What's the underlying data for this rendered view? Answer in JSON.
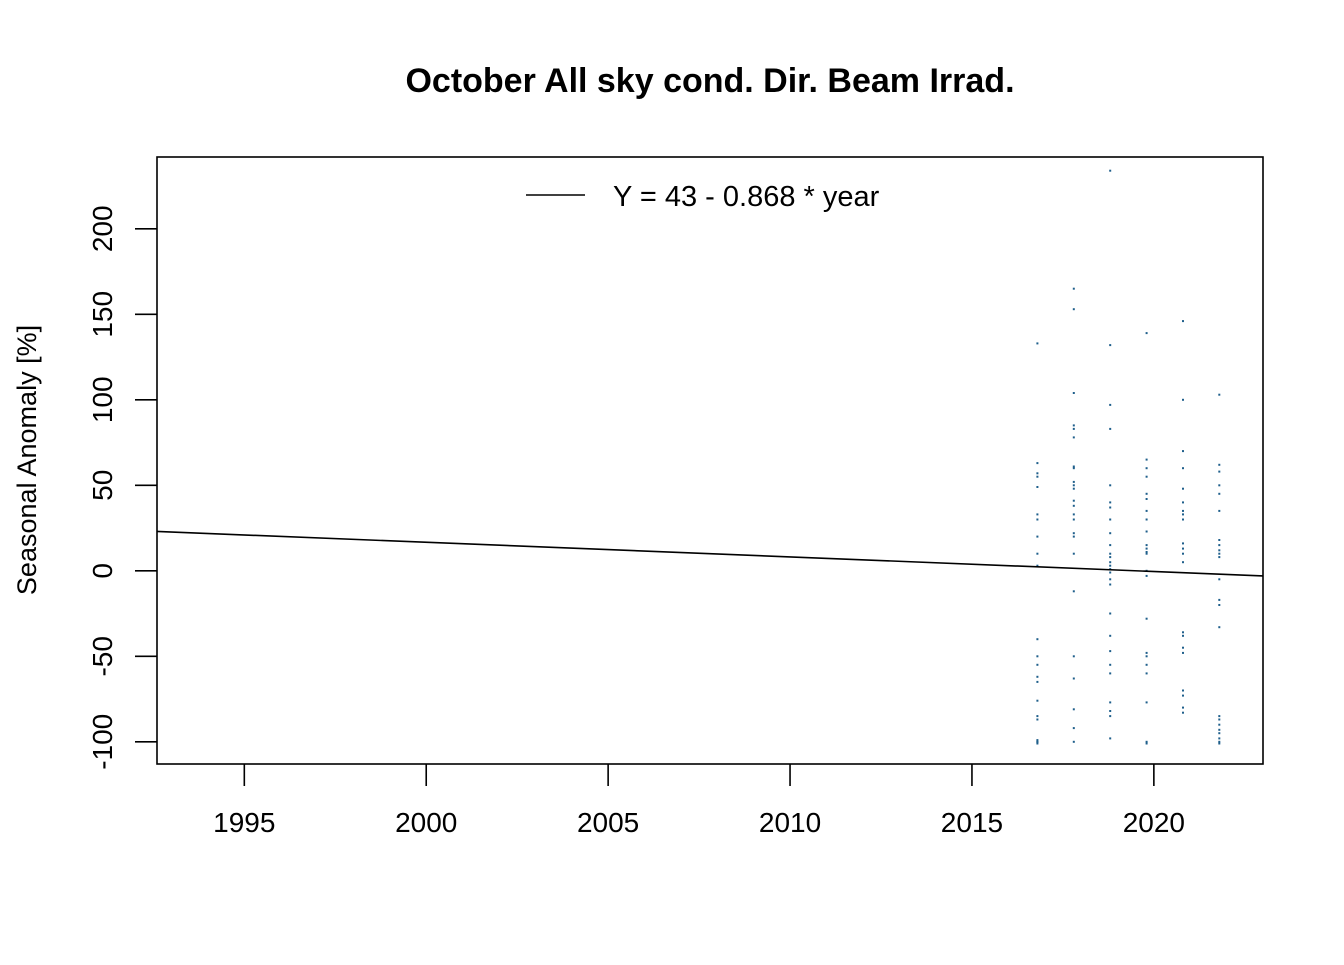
{
  "chart_data": {
    "type": "scatter",
    "title": "October All sky cond. Dir. Beam Irrad.",
    "xlabel": "",
    "ylabel": "Seasonal Anomaly [%]",
    "xlim": [
      1992.6,
      2023.0
    ],
    "ylim": [
      -113,
      242
    ],
    "xticks": [
      1995,
      2000,
      2005,
      2010,
      2015,
      2020
    ],
    "yticks": [
      -100,
      -50,
      0,
      50,
      100,
      150,
      200
    ],
    "grid": false,
    "legend": {
      "position": "top",
      "entries": [
        "Y = 43 - 0.868 * year"
      ]
    },
    "point_color": "#1f5f8b",
    "trend_line": {
      "label": "Y = 43 - 0.868 * year",
      "x": [
        1992.6,
        2023.0
      ],
      "y": [
        23.0,
        -3.0
      ],
      "color": "#000000"
    },
    "series": [
      {
        "x": [
          2016.8,
          2016.8,
          2016.8,
          2016.8,
          2016.8,
          2016.8,
          2016.8,
          2016.8,
          2016.8,
          2016.8,
          2016.8,
          2016.8,
          2016.8,
          2016.8,
          2016.8,
          2016.8,
          2016.8,
          2016.8,
          2016.8,
          2016.8,
          2016.8,
          2016.8,
          2017.8,
          2017.8,
          2017.8,
          2017.8,
          2017.8,
          2017.8,
          2017.8,
          2017.8,
          2017.8,
          2017.8,
          2017.8,
          2017.8,
          2017.8,
          2017.8,
          2017.8,
          2017.8,
          2017.8,
          2017.8,
          2017.8,
          2017.8,
          2017.8,
          2017.8,
          2017.8,
          2017.8,
          2018.8,
          2018.8,
          2018.8,
          2018.8,
          2018.8,
          2018.8,
          2018.8,
          2018.8,
          2018.8,
          2018.8,
          2018.8,
          2018.8,
          2018.8,
          2018.8,
          2018.8,
          2018.8,
          2018.8,
          2018.8,
          2018.8,
          2018.8,
          2018.8,
          2018.8,
          2018.8,
          2018.8,
          2018.8,
          2018.8,
          2018.8,
          2019.8,
          2019.8,
          2019.8,
          2019.8,
          2019.8,
          2019.8,
          2019.8,
          2019.8,
          2019.8,
          2019.8,
          2019.8,
          2019.8,
          2019.8,
          2019.8,
          2019.8,
          2019.8,
          2019.8,
          2019.8,
          2019.8,
          2019.8,
          2019.8,
          2019.8,
          2019.8,
          2020.8,
          2020.8,
          2020.8,
          2020.8,
          2020.8,
          2020.8,
          2020.8,
          2020.8,
          2020.8,
          2020.8,
          2020.8,
          2020.8,
          2020.8,
          2020.8,
          2020.8,
          2020.8,
          2020.8,
          2020.8,
          2020.8,
          2020.8,
          2020.8,
          2021.8,
          2021.8,
          2021.8,
          2021.8,
          2021.8,
          2021.8,
          2021.8,
          2021.8,
          2021.8,
          2021.8,
          2021.8,
          2021.8,
          2021.8,
          2021.8,
          2021.8,
          2021.8,
          2021.8,
          2021.8,
          2021.8,
          2021.8,
          2021.8,
          2021.8,
          2021.8
        ],
        "y": [
          133,
          63,
          57,
          55,
          49,
          33,
          30,
          20,
          10,
          3,
          -40,
          -50,
          -55,
          -62,
          -65,
          -76,
          -85,
          -87,
          -99,
          -100,
          -100,
          -101,
          165,
          153,
          104,
          85,
          83,
          78,
          61,
          60,
          52,
          50,
          48,
          41,
          38,
          33,
          30,
          22,
          20,
          10,
          -12,
          -50,
          -63,
          -81,
          -92,
          -100,
          234,
          132,
          97,
          83,
          50,
          40,
          37,
          30,
          22,
          15,
          10,
          8,
          5,
          3,
          1,
          -1,
          -5,
          -8,
          -25,
          -38,
          -47,
          -55,
          -60,
          -77,
          -82,
          -85,
          -98,
          139,
          65,
          60,
          55,
          45,
          42,
          35,
          30,
          23,
          15,
          13,
          11,
          10,
          0,
          -3,
          -28,
          -48,
          -50,
          -55,
          -60,
          -77,
          -100,
          -101,
          146,
          100,
          70,
          60,
          48,
          40,
          35,
          33,
          30,
          16,
          13,
          10,
          5,
          -36,
          -38,
          -45,
          -48,
          -70,
          -73,
          -80,
          -83,
          103,
          62,
          58,
          50,
          45,
          35,
          18,
          15,
          12,
          10,
          8,
          -5,
          -17,
          -20,
          -33,
          -85,
          -87,
          -90,
          -93,
          -95,
          -98,
          -100,
          -101
        ]
      }
    ]
  }
}
